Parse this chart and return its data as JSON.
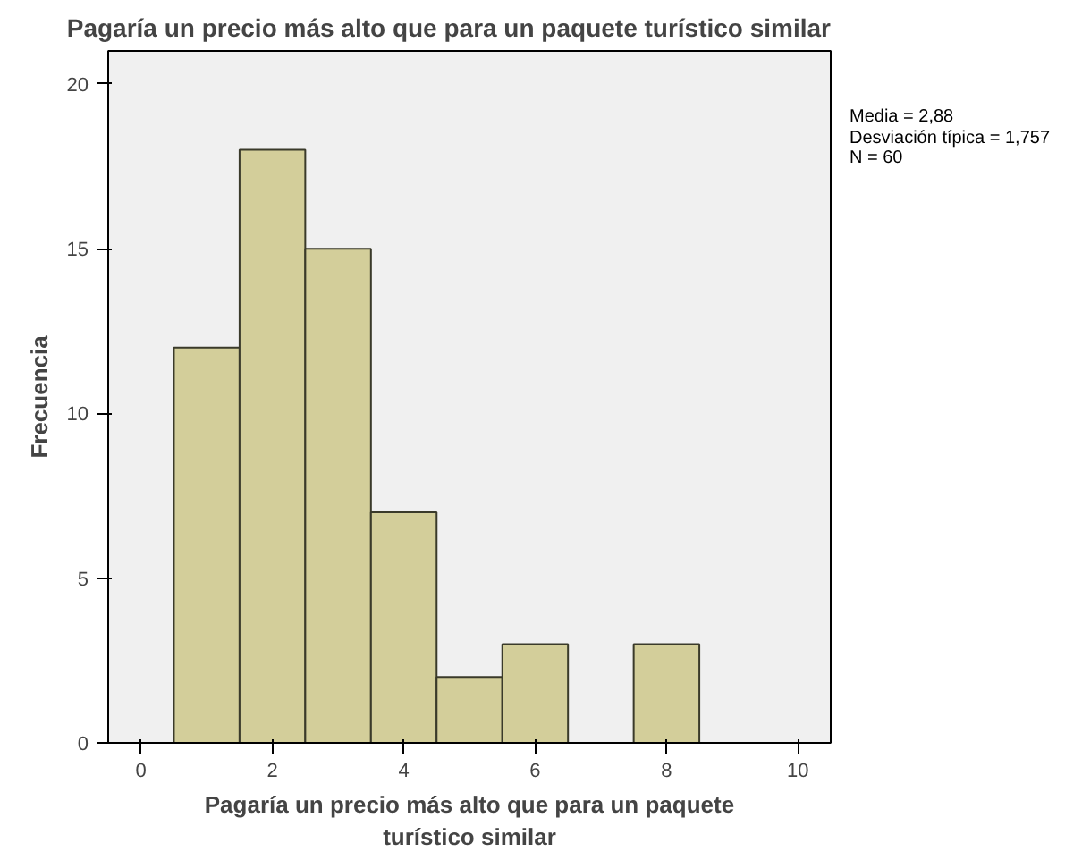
{
  "chart_data": {
    "type": "histogram",
    "title": "Pagaría un precio más alto que para un paquete turístico similar",
    "xlabel": "Pagaría un precio más alto que para un paquete turístico similar",
    "ylabel": "Frecuencia",
    "bins": [
      0.5,
      1.5,
      2.5,
      3.5,
      4.5,
      5.5,
      6.5,
      7.5,
      8.5
    ],
    "values": [
      12,
      18,
      15,
      7,
      2,
      3,
      0,
      3
    ],
    "color": "#d3ce9a",
    "xlim": [
      -0.5,
      10.5
    ],
    "xticks": [
      0,
      2,
      4,
      6,
      8,
      10
    ],
    "ylim": [
      0,
      21
    ],
    "yticks": [
      0,
      5,
      10,
      15,
      20
    ],
    "grid": false,
    "annotations": [
      "Media = 2,88",
      "Desviación típica = 1,757",
      "N = 60"
    ]
  }
}
